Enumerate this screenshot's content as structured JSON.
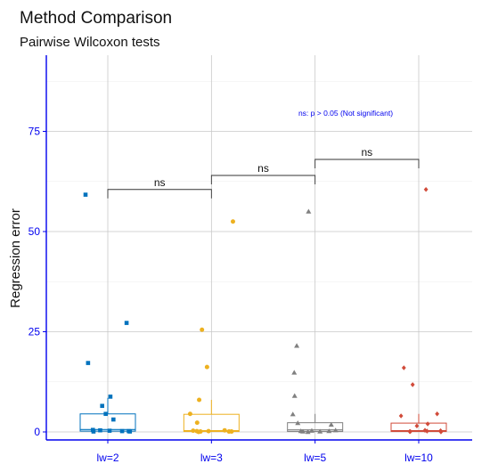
{
  "colors": {
    "axis": "#0000ee",
    "grid_major": "#c8c8c8",
    "grid_minor": "#ececec",
    "series": [
      "#0072BD",
      "#EDB120",
      "#808080",
      "#D14B3A"
    ]
  },
  "chart_data": {
    "type": "box",
    "title": "Method Comparison",
    "subtitle": "Pairwise Wilcoxon tests",
    "xlabel": "",
    "ylabel": "Regression error",
    "ylim": [
      -2,
      94
    ],
    "y_ticks": [
      0,
      25,
      50,
      75
    ],
    "grid": true,
    "categories": [
      "lw=2",
      "lw=3",
      "lw=5",
      "lw=10"
    ],
    "series": [
      {
        "category": "lw=2",
        "marker": "square",
        "box": {
          "q1": 0.2,
          "median": 0.6,
          "q3": 4.5,
          "whisker_low": 0,
          "whisker_high": 8.5
        },
        "points": [
          59.2,
          27.2,
          17.2,
          8.8,
          6.5,
          4.5,
          3.1,
          0.5,
          0.4,
          0.3,
          0.2,
          0.2,
          0.1,
          0.1
        ]
      },
      {
        "category": "lw=3",
        "marker": "circle",
        "box": {
          "q1": 0.1,
          "median": 0.3,
          "q3": 4.4,
          "whisker_low": 0,
          "whisker_high": 8.0
        },
        "points": [
          52.5,
          25.5,
          16.2,
          8.0,
          4.5,
          2.3,
          0.4,
          0.3,
          0.2,
          0.2,
          0.1,
          0.1,
          0.1,
          0.0
        ]
      },
      {
        "category": "lw=5",
        "marker": "triangle",
        "box": {
          "q1": 0.1,
          "median": 0.5,
          "q3": 2.3,
          "whisker_low": 0,
          "whisker_high": 4.5
        },
        "points": [
          55.0,
          21.5,
          14.8,
          9.0,
          4.4,
          2.2,
          1.8,
          0.4,
          0.3,
          0.2,
          0.2,
          0.1,
          0.1,
          0.0
        ]
      },
      {
        "category": "lw=10",
        "marker": "diamond",
        "box": {
          "q1": 0.1,
          "median": 0.3,
          "q3": 2.2,
          "whisker_low": 0,
          "whisker_high": 4.5
        },
        "points": [
          60.5,
          16.0,
          11.8,
          4.5,
          4.0,
          2.0,
          1.5,
          0.4,
          0.3,
          0.2,
          0.1,
          0.1,
          0.0
        ]
      }
    ],
    "comparisons": [
      {
        "groups": [
          "lw=2",
          "lw=3"
        ],
        "y": 60.5,
        "label": "ns"
      },
      {
        "groups": [
          "lw=3",
          "lw=5"
        ],
        "y": 64.0,
        "label": "ns"
      },
      {
        "groups": [
          "lw=5",
          "lw=10"
        ],
        "y": 68.0,
        "label": "ns"
      }
    ],
    "note": "ns: p > 0.05 (Not significant)"
  }
}
